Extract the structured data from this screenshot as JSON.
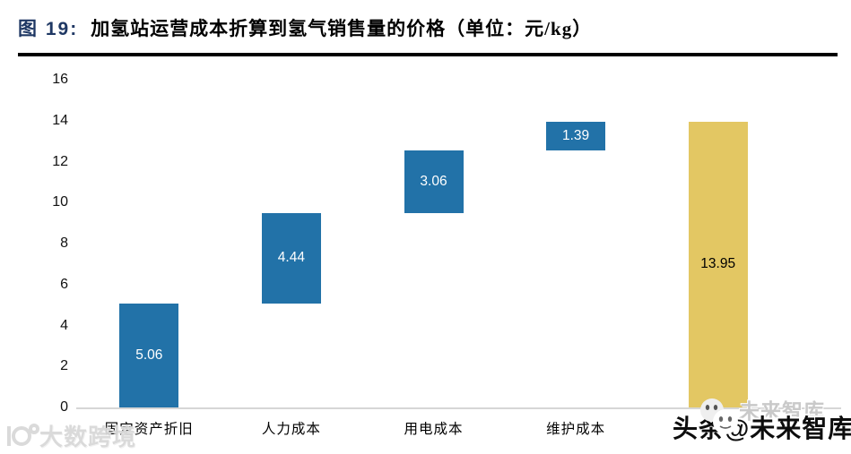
{
  "header": {
    "figure_label": "图 19:",
    "title_text": "加氢站运营成本折算到氢气销售量的价格（单位：元/kg）"
  },
  "chart_data": {
    "type": "bar",
    "subtype": "waterfall",
    "title": "加氢站运营成本折算到氢气销售量的价格",
    "unit": "元/kg",
    "categories": [
      "固定资产折旧",
      "人力成本",
      "用电成本",
      "维护成本",
      ""
    ],
    "bars": [
      {
        "category": "固定资产折旧",
        "base": 0,
        "value": 5.06,
        "label": "5.06",
        "color": "#2272A8",
        "label_color": "#FFFFFF"
      },
      {
        "category": "人力成本",
        "base": 5.06,
        "value": 4.44,
        "label": "4.44",
        "color": "#2272A8",
        "label_color": "#FFFFFF"
      },
      {
        "category": "用电成本",
        "base": 9.5,
        "value": 3.06,
        "label": "3.06",
        "color": "#2272A8",
        "label_color": "#FFFFFF"
      },
      {
        "category": "维护成本",
        "base": 12.56,
        "value": 1.39,
        "label": "1.39",
        "color": "#2272A8",
        "label_color": "#FFFFFF"
      },
      {
        "category": "",
        "base": 0,
        "value": 13.95,
        "label": "13.95",
        "color": "#E3C763",
        "label_color": "#000000"
      }
    ],
    "ylim": [
      0,
      16
    ],
    "yticks": [
      0,
      2,
      4,
      6,
      8,
      10,
      12,
      14,
      16
    ],
    "grid": false,
    "legend": false,
    "colors": {
      "increment": "#2272A8",
      "total": "#E3C763",
      "axis_line": "#D6D6D6",
      "title_accent": "#1F3864"
    }
  },
  "watermarks": {
    "bottom_left_text": "大数跨境",
    "bottom_right_ghost_text": "未来智库",
    "bottom_right_text": "头条@未来智库"
  }
}
